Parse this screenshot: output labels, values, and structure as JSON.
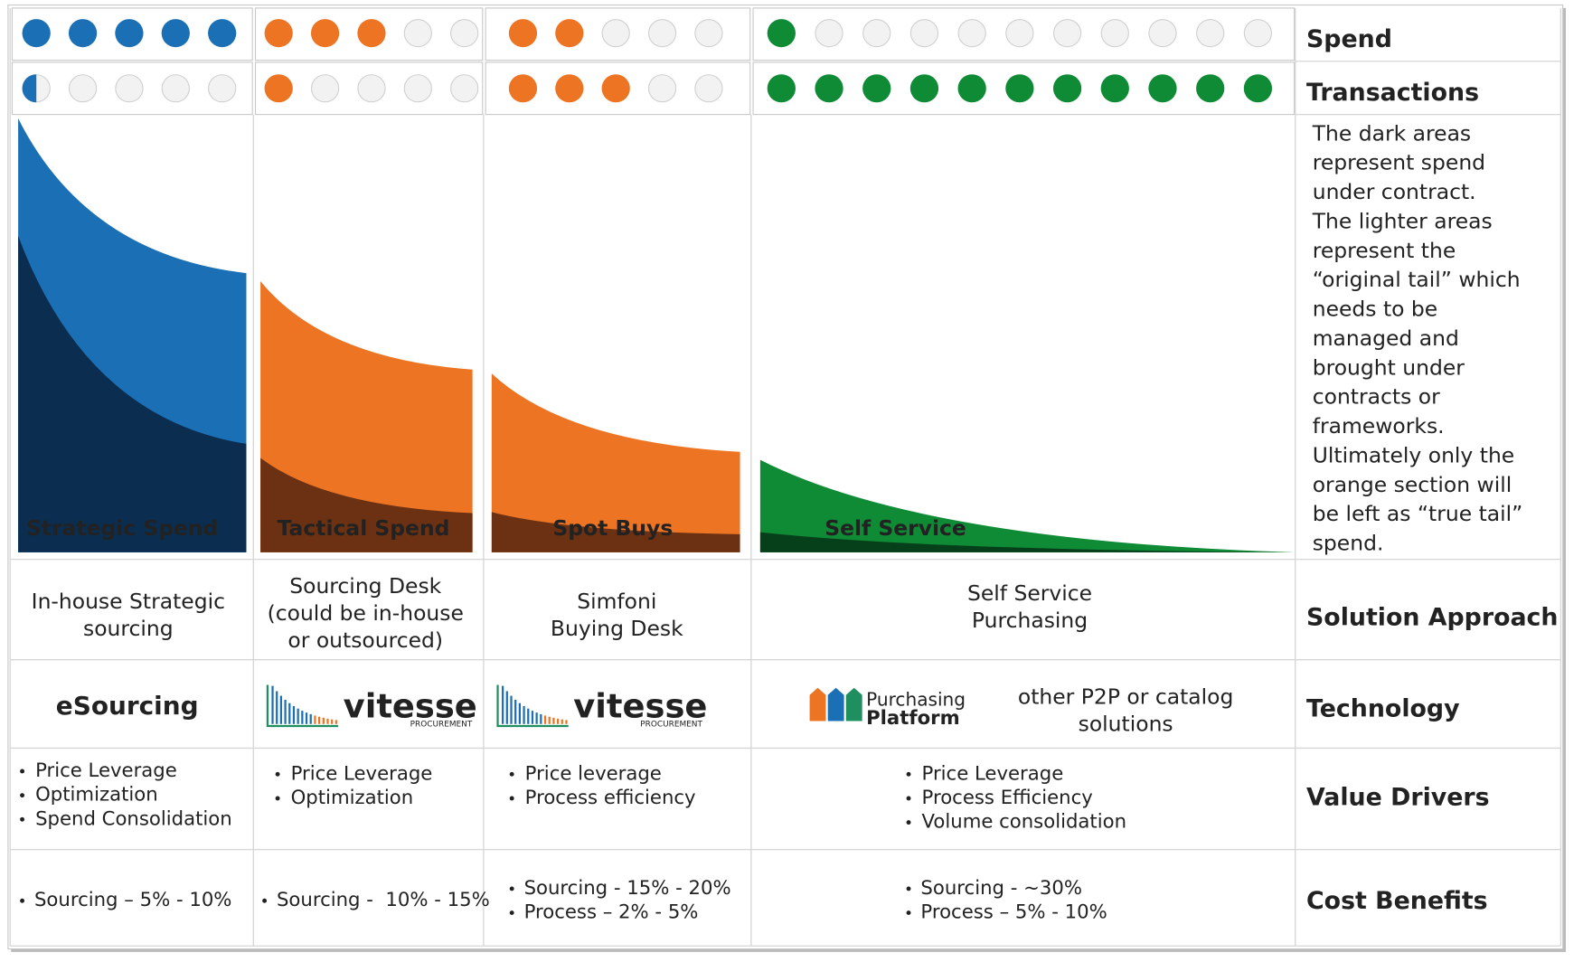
{
  "rows": {
    "spend": "Spend",
    "transactions": "Transactions",
    "solution": "Solution Approach",
    "technology": "Technology",
    "value_drivers": "Value Drivers",
    "cost_benefits": "Cost Benefits"
  },
  "note": [
    "The dark areas",
    "represent spend",
    "under contract.",
    "The lighter areas",
    "represent the",
    "“original tail” which",
    "needs to be",
    "managed and",
    "brought under",
    "contracts or",
    "frameworks.",
    "Ultimately only the",
    "orange section will",
    "be left as “true tail”",
    "spend."
  ],
  "columns": [
    {
      "segment": "Strategic Spend",
      "color": "#1a6fb5",
      "dark_color": "#0b2d4f",
      "dot_count": 5,
      "spend_rating": 5,
      "transactions_rating": 0.5,
      "solution": [
        "In-house Strategic",
        "sourcing"
      ],
      "technology": {
        "label": "eSourcing"
      },
      "value_drivers": [
        "Price Leverage",
        "Optimization",
        "Spend Consolidation"
      ],
      "cost_benefits": [
        "Sourcing – 5% - 10%"
      ]
    },
    {
      "segment": "Tactical Spend",
      "color": "#ed7423",
      "dark_color": "#6b3112",
      "dot_count": 5,
      "spend_rating": 3,
      "transactions_rating": 1,
      "solution": [
        "Sourcing Desk",
        "(could be in-house",
        "or outsourced)"
      ],
      "technology": {
        "logo": "vitesse",
        "logo_sub": "PROCUREMENT"
      },
      "value_drivers": [
        "Price Leverage",
        "Optimization"
      ],
      "cost_benefits": [
        "Sourcing -  10% - 15%"
      ]
    },
    {
      "segment": "Spot Buys",
      "color": "#ed7423",
      "dark_color": "#6b3112",
      "dot_count": 5,
      "spend_rating": 2,
      "transactions_rating": 3,
      "solution": [
        "Simfoni",
        "Buying Desk"
      ],
      "technology": {
        "logo": "vitesse",
        "logo_sub": "PROCUREMENT"
      },
      "value_drivers": [
        "Price leverage",
        "Process efficiency"
      ],
      "cost_benefits": [
        "Sourcing - 15% - 20%",
        "Process – 2% - 5%"
      ]
    },
    {
      "segment": "Self Service",
      "color": "#0f8a35",
      "dark_color": "#06401a",
      "dot_count": 11,
      "spend_rating": 1,
      "transactions_rating": 11,
      "solution": [
        "Self Service",
        "Purchasing"
      ],
      "technology": {
        "logo": [
          "Purchasing",
          "Platform"
        ],
        "label": [
          "other P2P or catalog",
          "solutions"
        ]
      },
      "value_drivers": [
        "Price Leverage",
        "Process Efficiency",
        "Volume consolidation"
      ],
      "cost_benefits": [
        "Sourcing - ~30%",
        "Process – 5% - 10%"
      ]
    }
  ]
}
